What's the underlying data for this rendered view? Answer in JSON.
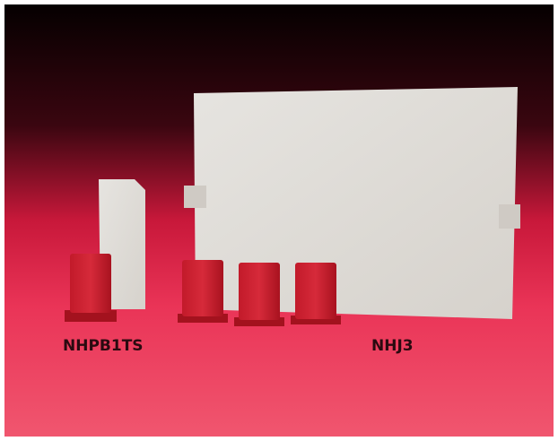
{
  "labels": [
    "NHPB1TS",
    "NHJ3"
  ]
}
